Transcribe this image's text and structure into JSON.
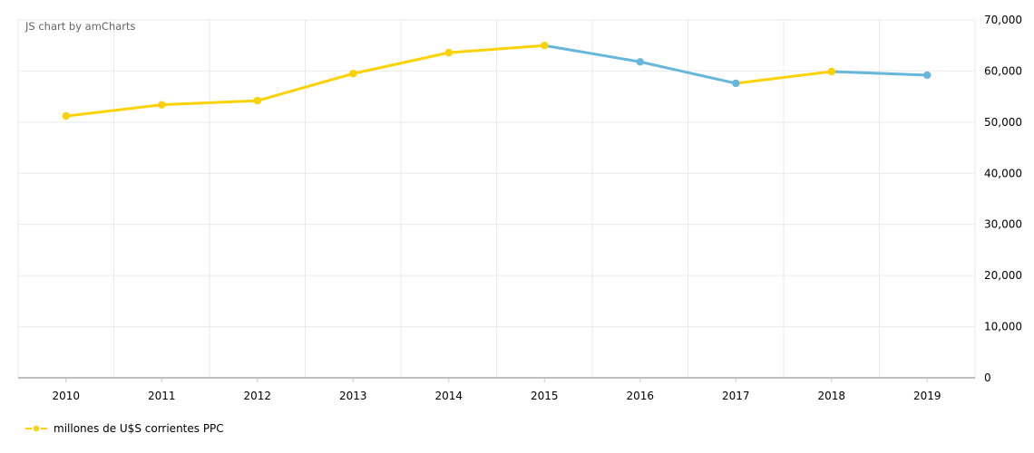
{
  "credit": {
    "label": "JS chart by amCharts"
  },
  "legend": {
    "position": "bottom",
    "items": [
      {
        "label": "millones de U$S corrientes PPC",
        "color": "#FCD202"
      }
    ]
  },
  "chart_data": {
    "type": "line",
    "title": "",
    "xlabel": "",
    "ylabel": "",
    "categories": [
      "2010",
      "2011",
      "2012",
      "2013",
      "2014",
      "2015",
      "2016",
      "2017",
      "2018",
      "2019"
    ],
    "series": [
      {
        "name": "millones de U$S corrientes PPC",
        "values": [
          51200,
          53400,
          54200,
          59500,
          63600,
          65000,
          61800,
          57600,
          59900,
          59200
        ],
        "line_color": "#FCD202",
        "negative_line_color": "#67B7DC",
        "color_rule": "segments falling to a lower value are drawn in negative_line_color"
      }
    ],
    "ylim": [
      0,
      70000
    ],
    "y_ticks": [
      0,
      10000,
      20000,
      30000,
      40000,
      50000,
      60000,
      70000
    ],
    "y_tick_labels": [
      "0",
      "10,000",
      "20,000",
      "30,000",
      "40,000",
      "50,000",
      "60,000",
      "70,000"
    ],
    "y_axis_position": "right",
    "grid": true,
    "legend_position": "bottom-left"
  },
  "colors": {
    "background": "#ffffff",
    "grid": "#e9e9e9",
    "axis": "#bfbfbf",
    "text": "#000000",
    "credit_text": "#646464"
  }
}
